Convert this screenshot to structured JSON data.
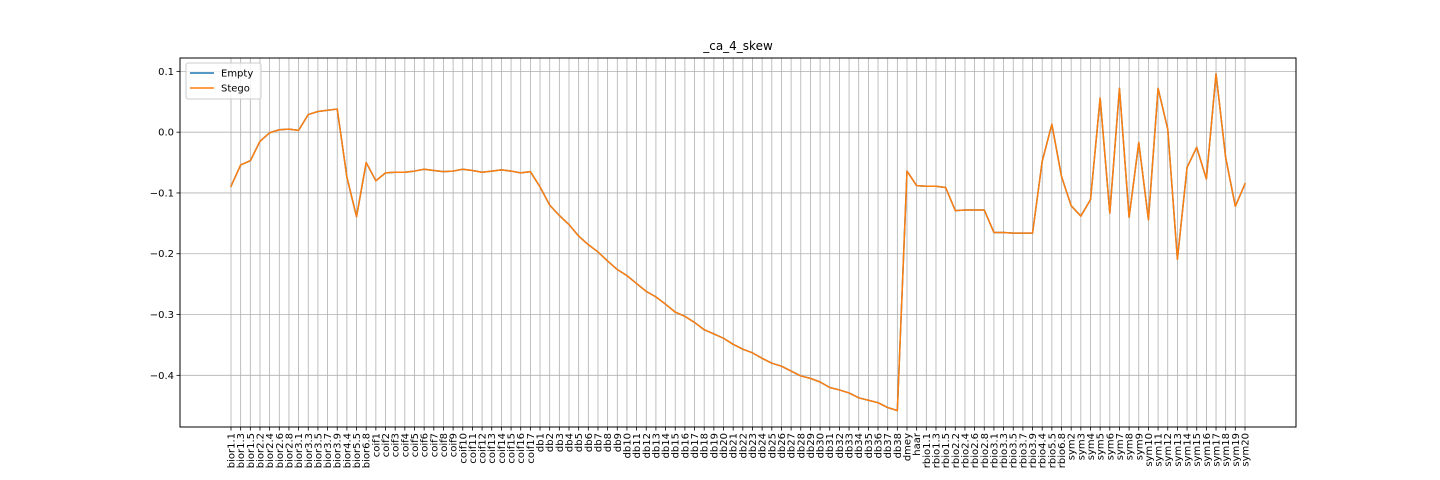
{
  "chart_data": {
    "type": "line",
    "title": "_ca_4_skew",
    "xlabel": "",
    "ylabel": "",
    "ylim": [
      -0.485,
      0.122
    ],
    "yticks": [
      0.1,
      0.0,
      -0.1,
      -0.2,
      -0.3,
      -0.4
    ],
    "ytick_labels": [
      "0.1",
      "0.0",
      "−0.1",
      "−0.2",
      "−0.3",
      "−0.4"
    ],
    "grid": true,
    "legend_position": "top-left",
    "categories": [
      "bior1.1",
      "bior1.3",
      "bior1.5",
      "bior2.2",
      "bior2.4",
      "bior2.6",
      "bior2.8",
      "bior3.1",
      "bior3.3",
      "bior3.5",
      "bior3.7",
      "bior3.9",
      "bior4.4",
      "bior5.5",
      "bior6.8",
      "coif1",
      "coif2",
      "coif3",
      "coif4",
      "coif5",
      "coif6",
      "coif7",
      "coif8",
      "coif9",
      "coif10",
      "coif11",
      "coif12",
      "coif13",
      "coif14",
      "coif15",
      "coif16",
      "coif17",
      "db1",
      "db2",
      "db3",
      "db4",
      "db5",
      "db6",
      "db7",
      "db8",
      "db9",
      "db10",
      "db11",
      "db12",
      "db13",
      "db14",
      "db15",
      "db16",
      "db17",
      "db18",
      "db19",
      "db20",
      "db21",
      "db22",
      "db23",
      "db24",
      "db25",
      "db26",
      "db27",
      "db28",
      "db29",
      "db30",
      "db31",
      "db32",
      "db33",
      "db34",
      "db35",
      "db36",
      "db37",
      "db38",
      "dmey",
      "haar",
      "rbio1.1",
      "rbio1.3",
      "rbio1.5",
      "rbio2.2",
      "rbio2.4",
      "rbio2.6",
      "rbio2.8",
      "rbio3.1",
      "rbio3.3",
      "rbio3.5",
      "rbio3.7",
      "rbio3.9",
      "rbio4.4",
      "rbio5.5",
      "rbio6.8",
      "sym2",
      "sym3",
      "sym4",
      "sym5",
      "sym6",
      "sym7",
      "sym8",
      "sym9",
      "sym10",
      "sym11",
      "sym12",
      "sym13",
      "sym14",
      "sym15",
      "sym16",
      "sym17",
      "sym18",
      "sym19",
      "sym20"
    ],
    "series": [
      {
        "name": "Empty",
        "color": "#1f77b4",
        "values": [
          -0.089,
          -0.054,
          -0.047,
          -0.015,
          -0.001,
          0.004,
          0.005,
          0.003,
          0.029,
          0.034,
          0.036,
          0.038,
          -0.074,
          -0.139,
          -0.05,
          -0.08,
          -0.067,
          -0.066,
          -0.066,
          -0.064,
          -0.061,
          -0.063,
          -0.065,
          -0.064,
          -0.061,
          -0.063,
          -0.066,
          -0.064,
          -0.062,
          -0.064,
          -0.067,
          -0.065,
          -0.09,
          -0.12,
          -0.137,
          -0.152,
          -0.171,
          -0.185,
          -0.197,
          -0.212,
          -0.226,
          -0.236,
          -0.249,
          -0.262,
          -0.271,
          -0.283,
          -0.296,
          -0.303,
          -0.313,
          -0.325,
          -0.332,
          -0.339,
          -0.349,
          -0.357,
          -0.363,
          -0.372,
          -0.38,
          -0.385,
          -0.393,
          -0.401,
          -0.405,
          -0.411,
          -0.42,
          -0.424,
          -0.429,
          -0.437,
          -0.441,
          -0.445,
          -0.453,
          -0.458,
          -0.064,
          -0.088,
          -0.089,
          -0.089,
          -0.091,
          -0.129,
          -0.128,
          -0.128,
          -0.128,
          -0.165,
          -0.165,
          -0.166,
          -0.166,
          -0.166,
          -0.048,
          0.013,
          -0.073,
          -0.121,
          -0.138,
          -0.111,
          0.056,
          -0.133,
          0.072,
          -0.14,
          -0.017,
          -0.144,
          0.072,
          0.005,
          -0.209,
          -0.058,
          -0.025,
          -0.077,
          0.096,
          -0.042,
          -0.122,
          -0.085
        ]
      },
      {
        "name": "Stego",
        "color": "#ff7f0e",
        "values": [
          -0.089,
          -0.054,
          -0.047,
          -0.015,
          -0.001,
          0.004,
          0.005,
          0.003,
          0.029,
          0.034,
          0.036,
          0.038,
          -0.074,
          -0.139,
          -0.05,
          -0.08,
          -0.067,
          -0.066,
          -0.066,
          -0.064,
          -0.061,
          -0.063,
          -0.065,
          -0.064,
          -0.061,
          -0.063,
          -0.066,
          -0.064,
          -0.062,
          -0.064,
          -0.067,
          -0.065,
          -0.09,
          -0.12,
          -0.137,
          -0.152,
          -0.171,
          -0.185,
          -0.197,
          -0.212,
          -0.226,
          -0.236,
          -0.249,
          -0.262,
          -0.271,
          -0.283,
          -0.296,
          -0.303,
          -0.313,
          -0.325,
          -0.332,
          -0.339,
          -0.349,
          -0.357,
          -0.363,
          -0.372,
          -0.38,
          -0.385,
          -0.393,
          -0.401,
          -0.405,
          -0.411,
          -0.42,
          -0.424,
          -0.429,
          -0.437,
          -0.441,
          -0.445,
          -0.453,
          -0.458,
          -0.064,
          -0.088,
          -0.089,
          -0.089,
          -0.091,
          -0.129,
          -0.128,
          -0.128,
          -0.128,
          -0.165,
          -0.165,
          -0.166,
          -0.166,
          -0.166,
          -0.048,
          0.013,
          -0.073,
          -0.121,
          -0.138,
          -0.111,
          0.056,
          -0.133,
          0.072,
          -0.14,
          -0.017,
          -0.144,
          0.072,
          0.005,
          -0.209,
          -0.058,
          -0.025,
          -0.077,
          0.096,
          -0.042,
          -0.122,
          -0.085
        ]
      }
    ]
  }
}
